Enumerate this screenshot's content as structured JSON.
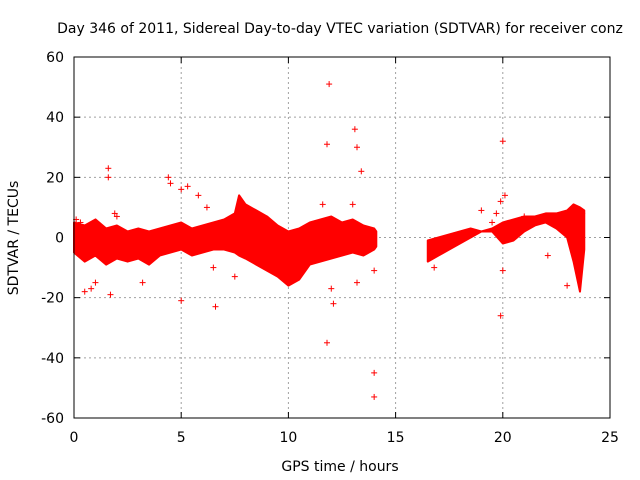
{
  "chart_data": {
    "type": "scatter",
    "title": "Day 346 of 2011, Sidereal Day-to-day VTEC variation (SDTVAR) for receiver conz",
    "xlabel": "GPS time / hours",
    "ylabel": "SDTVAR / TECUs",
    "xlim": [
      0,
      25
    ],
    "ylim": [
      -60,
      60
    ],
    "x_ticks": [
      0,
      5,
      10,
      15,
      20,
      25
    ],
    "y_ticks": [
      -60,
      -40,
      -20,
      0,
      20,
      40,
      60
    ],
    "grid": true,
    "marker": "+",
    "series_color": "#ff0000",
    "envelope": {
      "description_segments": "dense band of samples, min/max per hour",
      "x": [
        0.0,
        0.5,
        1.0,
        1.5,
        2.0,
        2.5,
        3.0,
        3.5,
        4.0,
        4.5,
        5.0,
        5.5,
        6.0,
        6.5,
        7.0,
        7.5,
        7.7,
        8.0,
        8.5,
        9.0,
        9.5,
        10.0,
        10.5,
        11.0,
        11.5,
        12.0,
        12.5,
        13.0,
        13.5,
        14.0,
        14.1,
        16.5,
        17.0,
        17.5,
        18.0,
        18.5,
        19.0,
        19.5,
        20.0,
        20.5,
        21.0,
        21.5,
        22.0,
        22.5,
        23.0,
        23.3,
        23.6,
        23.8
      ],
      "upper": [
        5,
        4,
        6,
        3,
        4,
        2,
        3,
        2,
        3,
        4,
        5,
        3,
        4,
        5,
        6,
        8,
        14,
        11,
        9,
        7,
        4,
        2,
        3,
        5,
        6,
        7,
        5,
        6,
        4,
        3,
        2,
        -1,
        0,
        1,
        2,
        3,
        2,
        3,
        5,
        6,
        7,
        7,
        8,
        8,
        9,
        11,
        10,
        9
      ],
      "lower": [
        -5,
        -8,
        -6,
        -9,
        -7,
        -8,
        -7,
        -9,
        -6,
        -5,
        -4,
        -6,
        -5,
        -4,
        -4,
        -5,
        -6,
        -7,
        -9,
        -11,
        -13,
        -16,
        -14,
        -9,
        -8,
        -7,
        -6,
        -5,
        -6,
        -4,
        -3,
        -8,
        -6,
        -4,
        -2,
        0,
        2,
        2,
        -2,
        -1,
        2,
        4,
        5,
        3,
        0,
        -8,
        -18,
        -4
      ]
    },
    "outliers": [
      {
        "x": 0.1,
        "y": 6
      },
      {
        "x": 0.3,
        "y": 5
      },
      {
        "x": 0.5,
        "y": -18
      },
      {
        "x": 0.8,
        "y": -17
      },
      {
        "x": 1.0,
        "y": -15
      },
      {
        "x": 1.6,
        "y": 23
      },
      {
        "x": 1.6,
        "y": 20
      },
      {
        "x": 1.7,
        "y": -19
      },
      {
        "x": 1.9,
        "y": 8
      },
      {
        "x": 2.0,
        "y": 7
      },
      {
        "x": 3.2,
        "y": -15
      },
      {
        "x": 4.4,
        "y": 20
      },
      {
        "x": 4.5,
        "y": 18
      },
      {
        "x": 5.0,
        "y": 16
      },
      {
        "x": 5.0,
        "y": -21
      },
      {
        "x": 5.3,
        "y": 17
      },
      {
        "x": 5.8,
        "y": 14
      },
      {
        "x": 6.2,
        "y": 10
      },
      {
        "x": 6.5,
        "y": -10
      },
      {
        "x": 6.6,
        "y": -23
      },
      {
        "x": 7.5,
        "y": -13
      },
      {
        "x": 8.0,
        "y": 10
      },
      {
        "x": 11.6,
        "y": 11
      },
      {
        "x": 11.8,
        "y": 31
      },
      {
        "x": 11.8,
        "y": -35
      },
      {
        "x": 11.9,
        "y": 51
      },
      {
        "x": 12.1,
        "y": -22
      },
      {
        "x": 12.0,
        "y": -17
      },
      {
        "x": 13.1,
        "y": 36
      },
      {
        "x": 13.2,
        "y": 30
      },
      {
        "x": 13.4,
        "y": 22
      },
      {
        "x": 13.2,
        "y": -15
      },
      {
        "x": 13.0,
        "y": 11
      },
      {
        "x": 14.0,
        "y": -11
      },
      {
        "x": 14.0,
        "y": -45
      },
      {
        "x": 14.0,
        "y": -53
      },
      {
        "x": 16.8,
        "y": -10
      },
      {
        "x": 19.0,
        "y": 9
      },
      {
        "x": 19.5,
        "y": 5
      },
      {
        "x": 19.7,
        "y": 8
      },
      {
        "x": 19.9,
        "y": 12
      },
      {
        "x": 20.0,
        "y": 32
      },
      {
        "x": 20.0,
        "y": -11
      },
      {
        "x": 19.9,
        "y": -26
      },
      {
        "x": 20.1,
        "y": 14
      },
      {
        "x": 21.0,
        "y": 7
      },
      {
        "x": 22.1,
        "y": -6
      },
      {
        "x": 23.0,
        "y": -16
      },
      {
        "x": 23.7,
        "y": 8
      }
    ]
  }
}
